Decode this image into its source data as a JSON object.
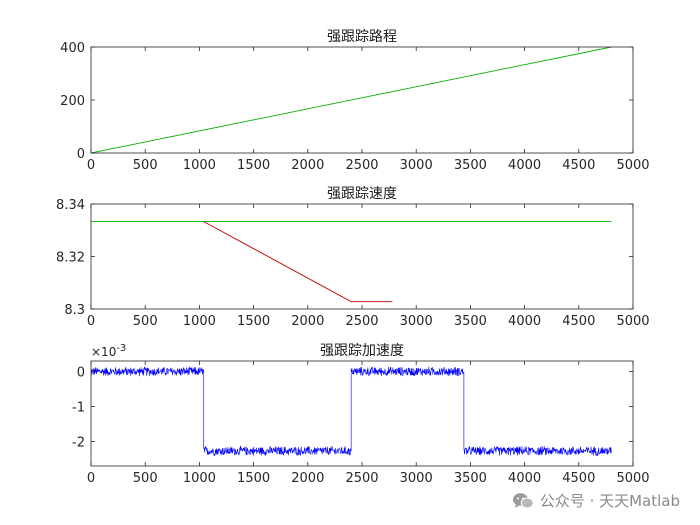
{
  "chart_data": [
    {
      "type": "line",
      "title": "强跟踪路程",
      "xlim": [
        0,
        5000
      ],
      "ylim": [
        0,
        400
      ],
      "xticks": [
        0,
        500,
        1000,
        1500,
        2000,
        2500,
        3000,
        3500,
        4000,
        4500,
        5000
      ],
      "yticks": [
        0,
        200,
        400
      ],
      "xtick_labels": [
        "0",
        "500",
        "1000",
        "1500",
        "2000",
        "2500",
        "3000",
        "3500",
        "4000",
        "4500",
        "5000"
      ],
      "ytick_labels": [
        "0",
        "200",
        "400"
      ],
      "series": [
        {
          "color": "#00b000",
          "x": [
            0,
            4800
          ],
          "y": [
            0,
            400
          ]
        }
      ]
    },
    {
      "type": "line",
      "title": "强跟踪速度",
      "xlim": [
        0,
        5000
      ],
      "ylim": [
        8.3,
        8.34
      ],
      "xticks": [
        0,
        500,
        1000,
        1500,
        2000,
        2500,
        3000,
        3500,
        4000,
        4500,
        5000
      ],
      "yticks": [
        8.3,
        8.32,
        8.34
      ],
      "xtick_labels": [
        "0",
        "500",
        "1000",
        "1500",
        "2000",
        "2500",
        "3000",
        "3500",
        "4000",
        "4500",
        "5000"
      ],
      "ytick_labels": [
        "8.3",
        "8.32",
        "8.34"
      ],
      "series": [
        {
          "color": "#00b000",
          "x": [
            0,
            4800
          ],
          "y": [
            8.3333,
            8.3333
          ]
        },
        {
          "color": "#c00000",
          "x": [
            1040,
            2400,
            2780
          ],
          "y": [
            8.3333,
            8.3028,
            8.3028
          ]
        }
      ]
    },
    {
      "type": "line",
      "title": "强跟踪加速度",
      "axis_exponent_label": "×10",
      "axis_exponent_power": "-3",
      "xlim": [
        0,
        5000
      ],
      "ylim": [
        -2.7,
        0.3
      ],
      "xticks": [
        0,
        500,
        1000,
        1500,
        2000,
        2500,
        3000,
        3500,
        4000,
        4500,
        5000
      ],
      "yticks": [
        -2,
        -1,
        0
      ],
      "xtick_labels": [
        "0",
        "500",
        "1000",
        "1500",
        "2000",
        "2500",
        "3000",
        "3500",
        "4000",
        "4500",
        "5000"
      ],
      "ytick_labels": [
        "-2",
        "-1",
        "0"
      ],
      "series": [
        {
          "color": "#0000ff",
          "style": "noisy-step",
          "segments": [
            {
              "x_start": 0,
              "x_end": 1040,
              "level": 0.0,
              "noise": 0.15
            },
            {
              "x_start": 1040,
              "x_end": 2400,
              "level": -2.27,
              "noise": 0.15
            },
            {
              "x_start": 2400,
              "x_end": 3440,
              "level": 0.0,
              "noise": 0.15
            },
            {
              "x_start": 3440,
              "x_end": 4800,
              "level": -2.27,
              "noise": 0.15
            }
          ]
        }
      ]
    }
  ],
  "watermark": {
    "text": "公众号 · 天天Matlab",
    "icon": "wechat-icon"
  }
}
